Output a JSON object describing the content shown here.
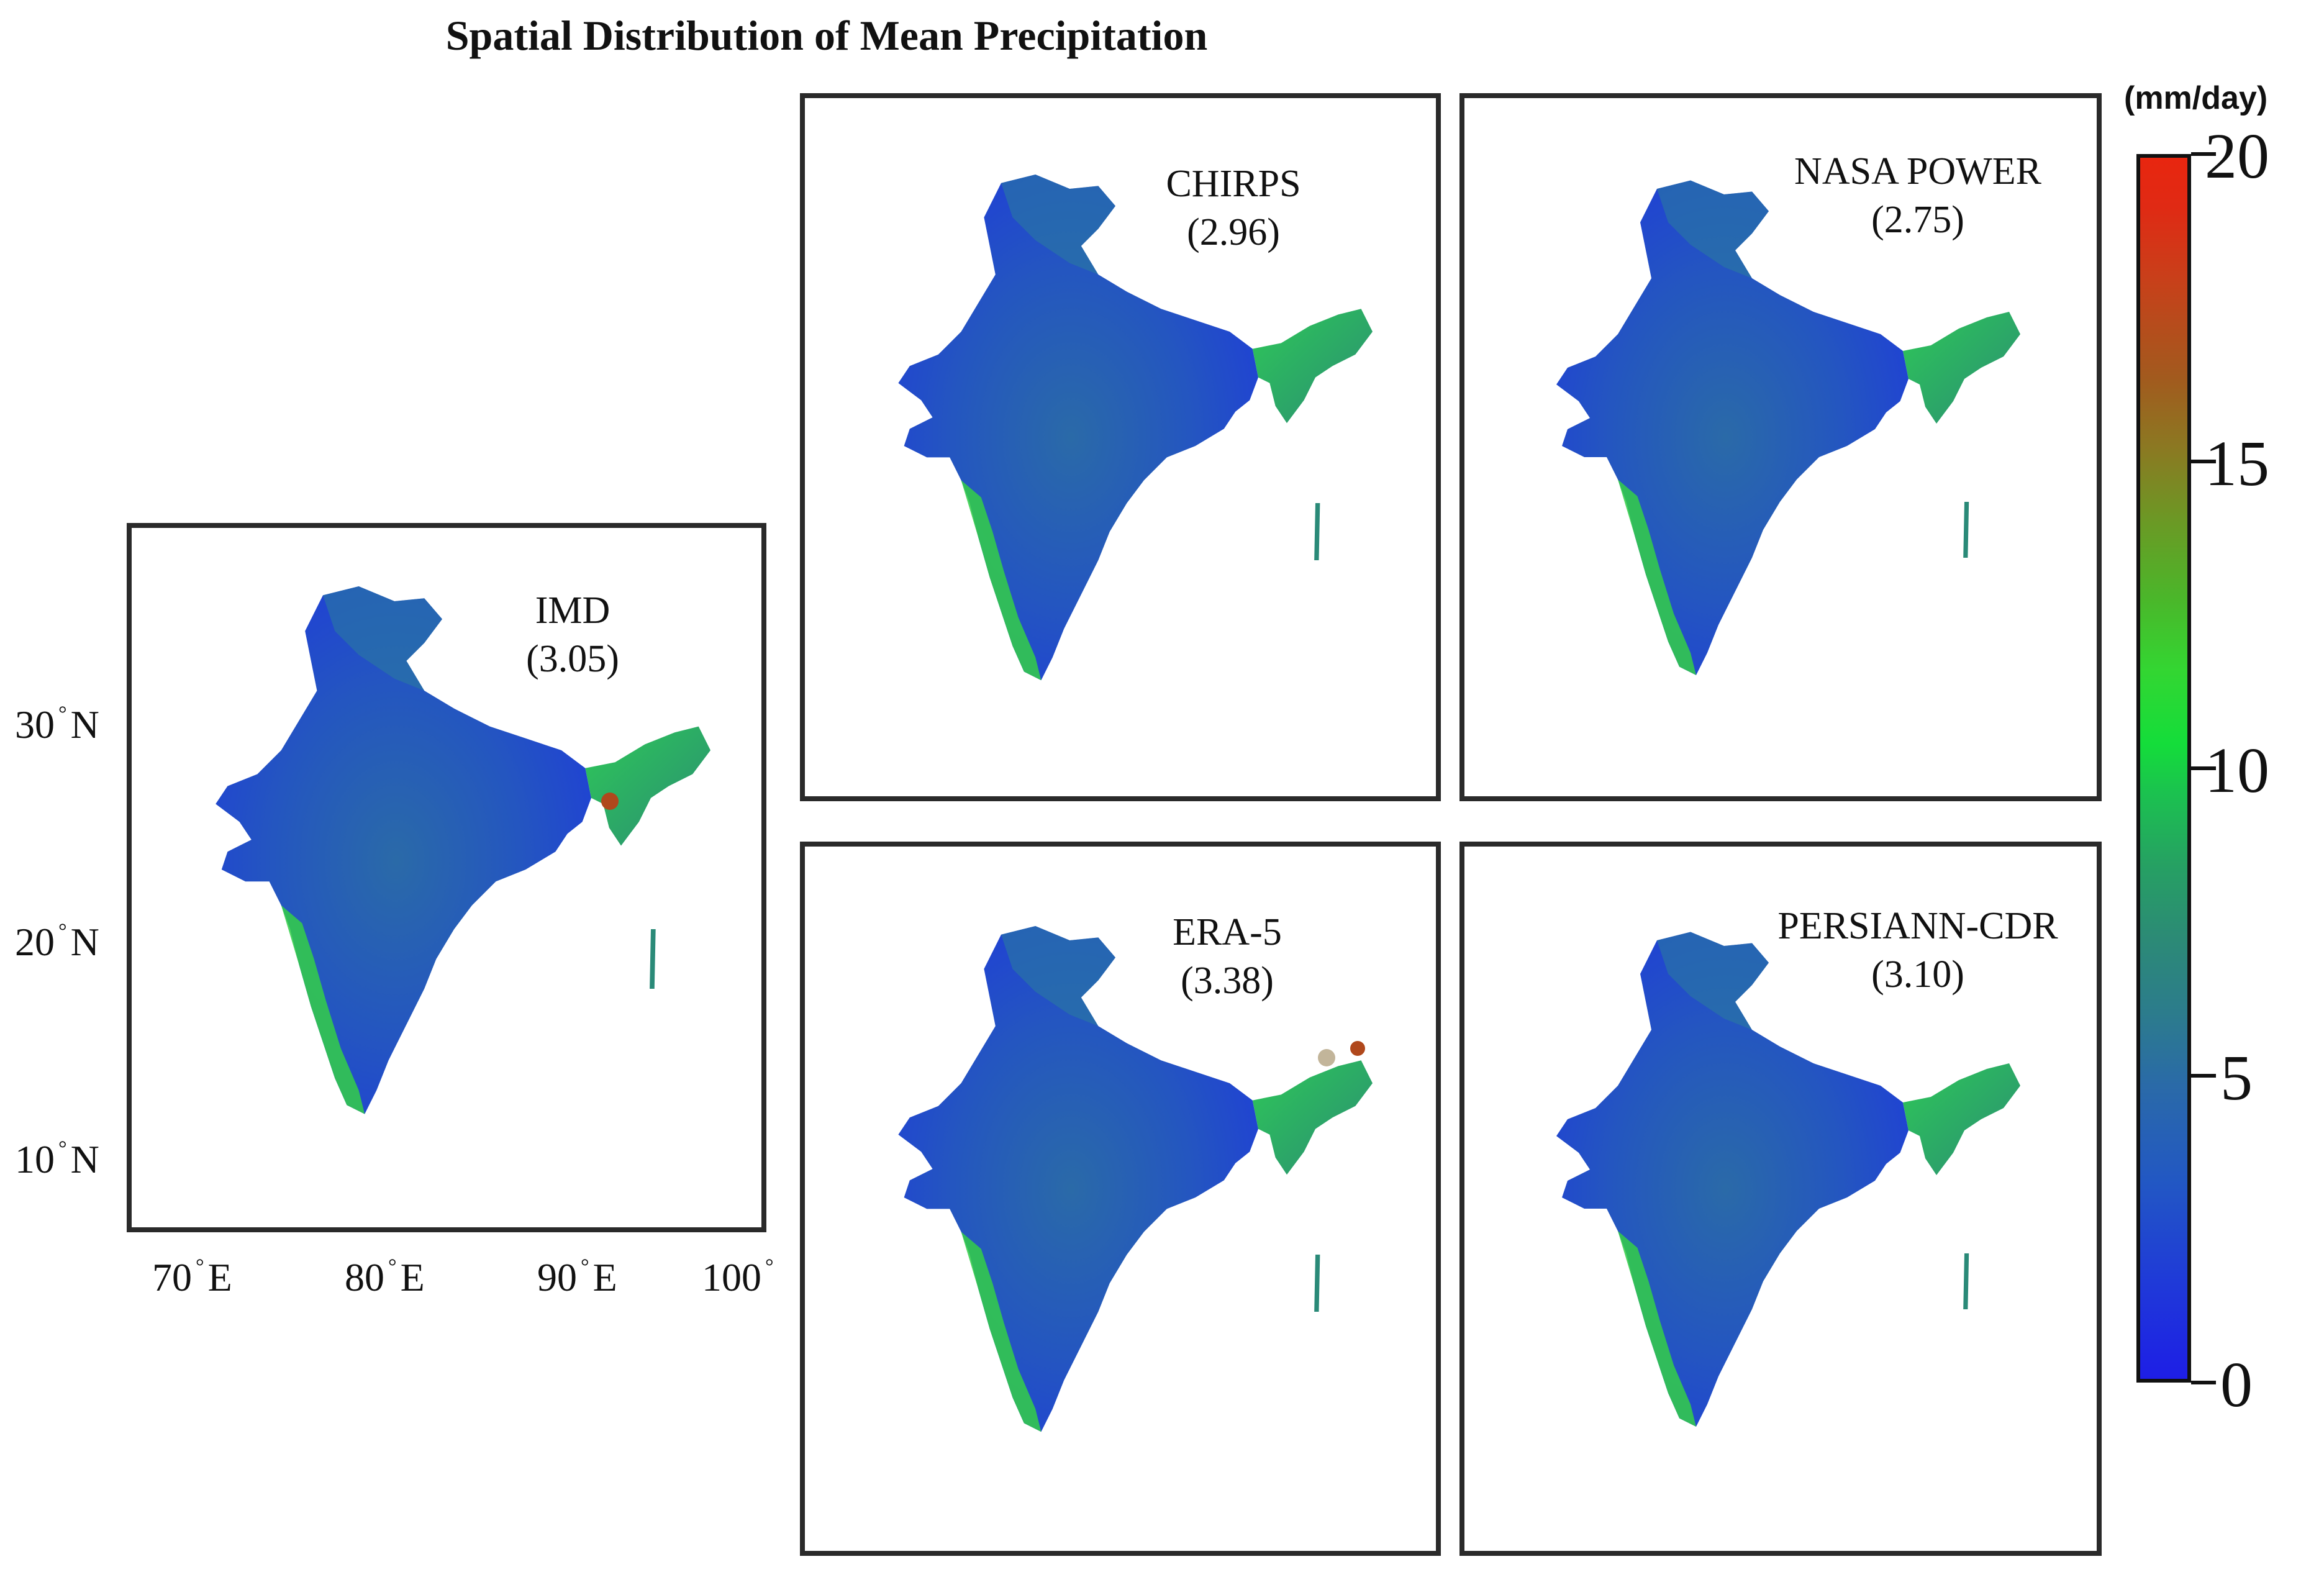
{
  "title": "Spatial Distribution of  Mean Precipitation",
  "colorbar": {
    "unit": "(mm/day)",
    "ticks": [
      "0",
      "5",
      "10",
      "15",
      "20"
    ],
    "range": [
      0,
      20
    ]
  },
  "panels": [
    {
      "id": "imd",
      "label": "IMD",
      "mean": "(3.05)"
    },
    {
      "id": "chirps",
      "label": "CHIRPS",
      "mean": "(2.96)"
    },
    {
      "id": "nasa",
      "label": "NASA POWER",
      "mean": "(2.75)"
    },
    {
      "id": "era5",
      "label": "ERA-5",
      "mean": "(3.38)"
    },
    {
      "id": "persiann",
      "label": "PERSIANN-CDR",
      "mean": "(3.10)"
    }
  ],
  "lat_ticks": [
    {
      "deg": "30",
      "hemi": "N"
    },
    {
      "deg": "20",
      "hemi": "N"
    },
    {
      "deg": "10",
      "hemi": "N"
    }
  ],
  "lon_ticks": [
    {
      "deg": "70",
      "hemi": "E"
    },
    {
      "deg": "80",
      "hemi": "E"
    },
    {
      "deg": "90",
      "hemi": "E"
    },
    {
      "deg": "100",
      "hemi": ""
    }
  ],
  "colors": {
    "low": "#1e1ee6",
    "mid": "#2c7c8c",
    "high": "#1bc24f",
    "max": "#e8260f",
    "frame": "#2a2a2a"
  }
}
